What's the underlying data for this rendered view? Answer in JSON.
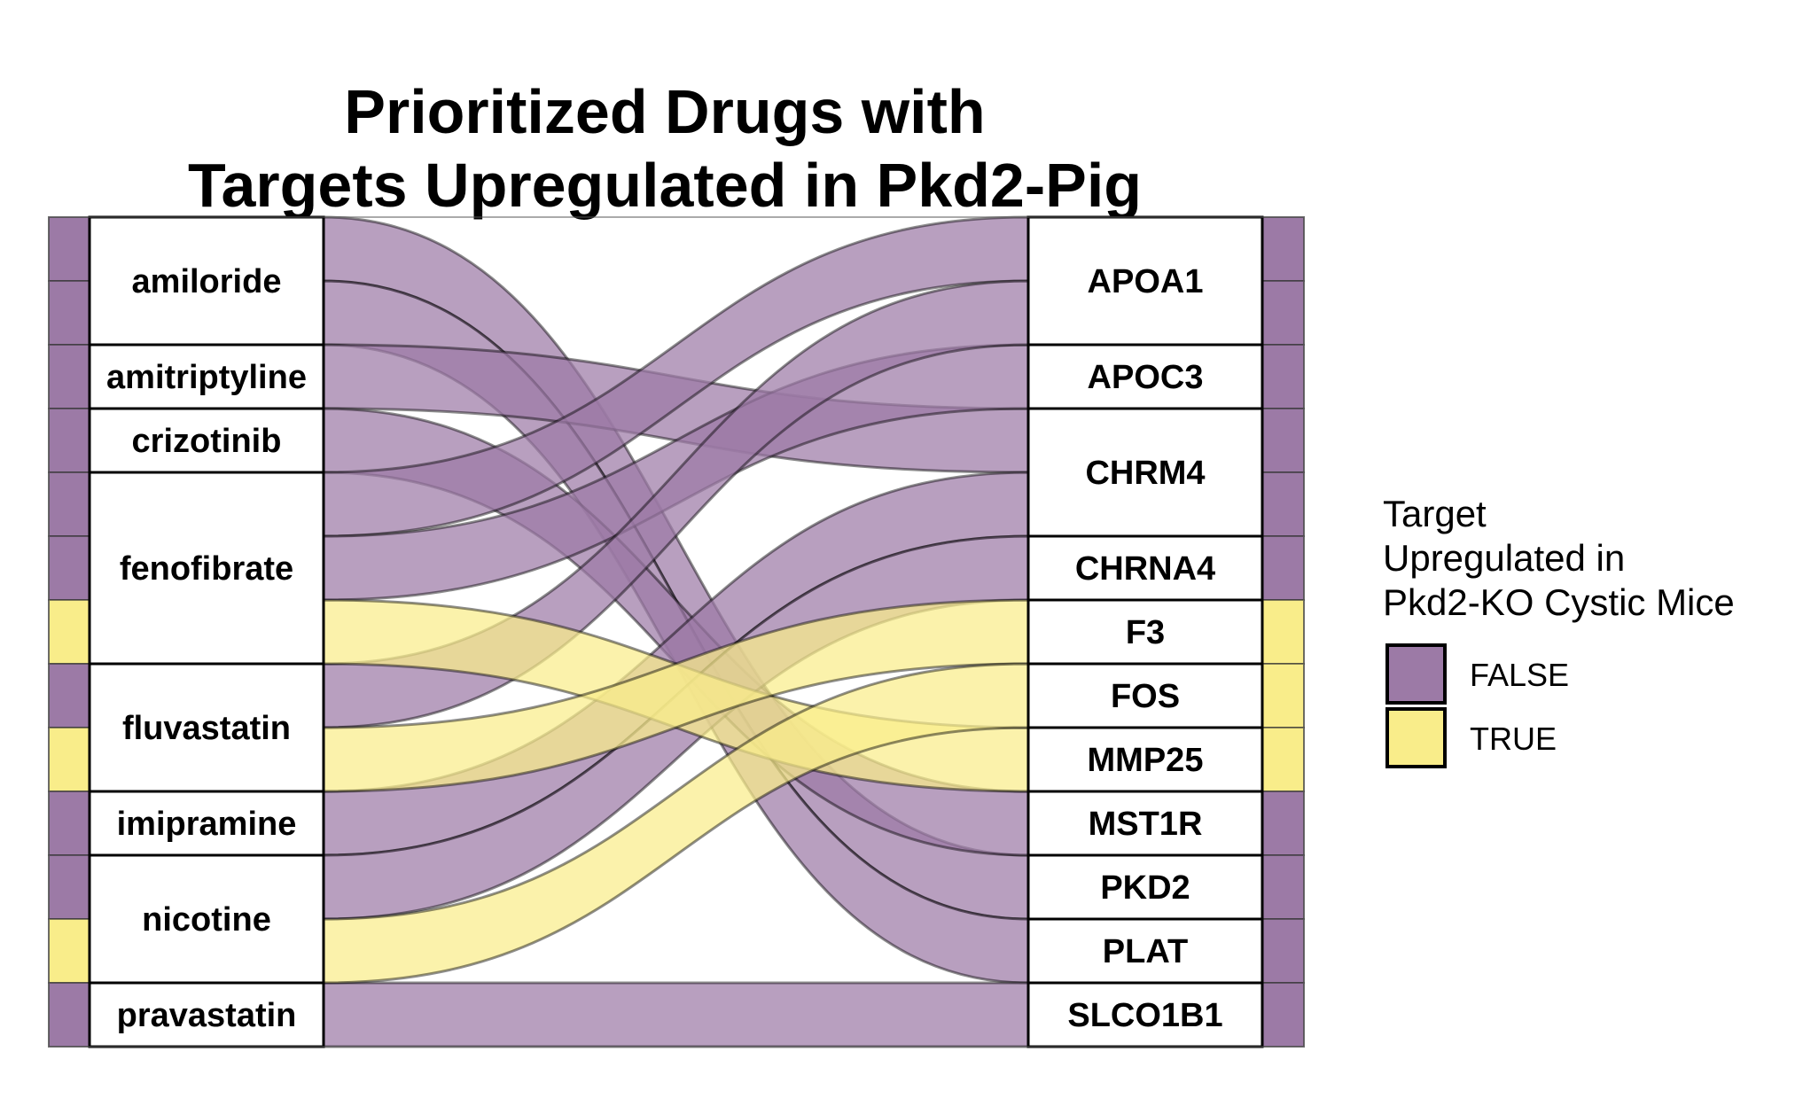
{
  "chart_data": {
    "type": "alluvial",
    "title": [
      "Prioritized Drugs with",
      "Targets Upregulated in Pkd2-Pig"
    ],
    "axes": [
      "drug",
      "target"
    ],
    "drugs": [
      "amiloride",
      "amitriptyline",
      "crizotinib",
      "fenofibrate",
      "fluvastatin",
      "imipramine",
      "nicotine",
      "pravastatin"
    ],
    "targets": [
      "APOA1",
      "APOC3",
      "CHRM4",
      "CHRNA4",
      "F3",
      "FOS",
      "MMP25",
      "MST1R",
      "PKD2",
      "PLAT",
      "SLCO1B1"
    ],
    "legend": {
      "title": [
        "Target",
        "Upregulated in",
        "Pkd2-KO Cystic Mice"
      ],
      "entries": [
        {
          "label": "FALSE",
          "color": "#9C7AA6"
        },
        {
          "label": "TRUE",
          "color": "#F9ED8A"
        }
      ]
    },
    "colors": {
      "FALSE": "#9C7AA6",
      "TRUE": "#F9ED8A",
      "stroke": "#000000"
    },
    "flows": [
      {
        "drug": "amiloride",
        "target": "PKD2",
        "upregulated": "FALSE"
      },
      {
        "drug": "amiloride",
        "target": "PLAT",
        "upregulated": "FALSE"
      },
      {
        "drug": "amitriptyline",
        "target": "CHRM4",
        "upregulated": "FALSE"
      },
      {
        "drug": "crizotinib",
        "target": "MST1R",
        "upregulated": "FALSE"
      },
      {
        "drug": "fenofibrate",
        "target": "APOA1",
        "upregulated": "FALSE"
      },
      {
        "drug": "fenofibrate",
        "target": "APOC3",
        "upregulated": "FALSE"
      },
      {
        "drug": "fenofibrate",
        "target": "MMP25",
        "upregulated": "TRUE"
      },
      {
        "drug": "fluvastatin",
        "target": "APOA1",
        "upregulated": "FALSE"
      },
      {
        "drug": "fluvastatin",
        "target": "F3",
        "upregulated": "TRUE"
      },
      {
        "drug": "imipramine",
        "target": "CHRM4",
        "upregulated": "FALSE"
      },
      {
        "drug": "nicotine",
        "target": "CHRNA4",
        "upregulated": "FALSE"
      },
      {
        "drug": "nicotine",
        "target": "FOS",
        "upregulated": "TRUE"
      },
      {
        "drug": "pravastatin",
        "target": "SLCO1B1",
        "upregulated": "FALSE"
      }
    ]
  }
}
